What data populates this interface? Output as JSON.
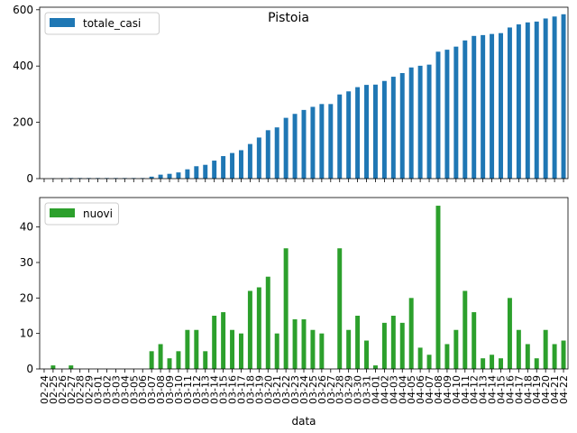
{
  "chart_data": [
    {
      "type": "bar",
      "title": "Pistoia",
      "categories": [
        "02-24",
        "02-25",
        "02-26",
        "02-27",
        "02-28",
        "02-29",
        "03-01",
        "03-02",
        "03-03",
        "03-04",
        "03-05",
        "03-06",
        "03-07",
        "03-08",
        "03-09",
        "03-10",
        "03-11",
        "03-12",
        "03-13",
        "03-14",
        "03-15",
        "03-16",
        "03-17",
        "03-18",
        "03-19",
        "03-20",
        "03-21",
        "03-22",
        "03-23",
        "03-24",
        "03-25",
        "03-26",
        "03-27",
        "03-28",
        "03-29",
        "03-30",
        "03-31",
        "04-01",
        "04-02",
        "04-03",
        "04-04",
        "04-05",
        "04-06",
        "04-07",
        "04-08",
        "04-09",
        "04-10",
        "04-11",
        "04-12",
        "04-13",
        "04-14",
        "04-15",
        "04-16",
        "04-17",
        "04-18",
        "04-19",
        "04-20",
        "04-21",
        "04-22"
      ],
      "series": [
        {
          "name": "totale_casi",
          "color": "#1f77b4",
          "values": [
            0,
            1,
            1,
            2,
            2,
            2,
            2,
            2,
            2,
            2,
            2,
            2,
            7,
            14,
            17,
            22,
            33,
            44,
            49,
            64,
            80,
            91,
            101,
            123,
            146,
            172,
            182,
            216,
            230,
            244,
            255,
            265,
            265,
            299,
            310,
            325,
            333,
            334,
            347,
            362,
            375,
            395,
            401,
            405,
            451,
            458,
            469,
            491,
            507,
            510,
            514,
            517,
            537,
            548,
            555,
            558,
            569,
            576,
            584
          ]
        }
      ],
      "ylim": [
        0,
        609
      ],
      "yticks": [
        0,
        200,
        400,
        600
      ],
      "legend": "upper left"
    },
    {
      "type": "bar",
      "xlabel": "data",
      "categories": [
        "02-24",
        "02-25",
        "02-26",
        "02-27",
        "02-28",
        "02-29",
        "03-01",
        "03-02",
        "03-03",
        "03-04",
        "03-05",
        "03-06",
        "03-07",
        "03-08",
        "03-09",
        "03-10",
        "03-11",
        "03-12",
        "03-13",
        "03-14",
        "03-15",
        "03-16",
        "03-17",
        "03-18",
        "03-19",
        "03-20",
        "03-21",
        "03-22",
        "03-23",
        "03-24",
        "03-25",
        "03-26",
        "03-27",
        "03-28",
        "03-29",
        "03-30",
        "03-31",
        "04-01",
        "04-02",
        "04-03",
        "04-04",
        "04-05",
        "04-06",
        "04-07",
        "04-08",
        "04-09",
        "04-10",
        "04-11",
        "04-12",
        "04-13",
        "04-14",
        "04-15",
        "04-16",
        "04-17",
        "04-18",
        "04-19",
        "04-20",
        "04-21",
        "04-22"
      ],
      "series": [
        {
          "name": "nuovi",
          "color": "#2ca02c",
          "values": [
            0,
            1,
            0,
            1,
            0,
            0,
            0,
            0,
            0,
            0,
            0,
            0,
            5,
            7,
            3,
            5,
            11,
            11,
            5,
            15,
            16,
            11,
            10,
            22,
            23,
            26,
            10,
            34,
            14,
            14,
            11,
            10,
            0,
            34,
            11,
            15,
            8,
            1,
            13,
            15,
            13,
            20,
            6,
            4,
            46,
            7,
            11,
            22,
            16,
            3,
            4,
            3,
            20,
            11,
            7,
            3,
            11,
            7,
            8
          ]
        }
      ],
      "ylim": [
        0,
        48.3
      ],
      "yticks": [
        0,
        10,
        20,
        30,
        40
      ],
      "legend": "upper left"
    }
  ]
}
